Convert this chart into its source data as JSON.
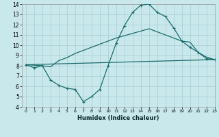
{
  "xlabel": "Humidex (Indice chaleur)",
  "bg_color": "#c8e8ec",
  "grid_color": "#a8ccd2",
  "line_color": "#1a6b6b",
  "curve1_x": [
    0,
    1,
    2,
    3,
    4,
    5,
    6,
    7,
    8,
    9,
    10,
    11,
    12,
    13,
    14,
    15,
    16,
    17,
    18,
    19,
    20,
    21,
    22,
    23
  ],
  "curve1_y": [
    8.1,
    7.8,
    8.0,
    6.6,
    6.1,
    5.8,
    5.7,
    4.5,
    5.0,
    5.7,
    8.0,
    10.2,
    11.9,
    13.2,
    13.9,
    14.0,
    13.2,
    12.8,
    11.7,
    10.4,
    9.8,
    9.3,
    8.7,
    8.6
  ],
  "curve2_x": [
    0,
    23
  ],
  "curve2_y": [
    8.1,
    8.6
  ],
  "curve3_x": [
    0,
    2,
    3,
    4,
    5,
    6,
    7,
    8,
    9,
    10,
    11,
    15,
    19,
    20,
    21,
    22,
    23
  ],
  "curve3_y": [
    8.1,
    8.0,
    7.9,
    8.5,
    8.8,
    9.2,
    9.5,
    9.8,
    10.1,
    10.4,
    10.7,
    11.6,
    10.4,
    10.3,
    9.3,
    8.85,
    8.6
  ],
  "ylim": [
    4,
    14
  ],
  "xlim": [
    -0.5,
    23
  ],
  "yticks": [
    4,
    5,
    6,
    7,
    8,
    9,
    10,
    11,
    12,
    13,
    14
  ],
  "xticks": [
    0,
    1,
    2,
    3,
    4,
    5,
    6,
    7,
    8,
    9,
    10,
    11,
    12,
    13,
    14,
    15,
    16,
    17,
    18,
    19,
    20,
    21,
    22,
    23
  ],
  "tick_fontsize_x": 4.5,
  "tick_fontsize_y": 5.5,
  "xlabel_fontsize": 6.0
}
